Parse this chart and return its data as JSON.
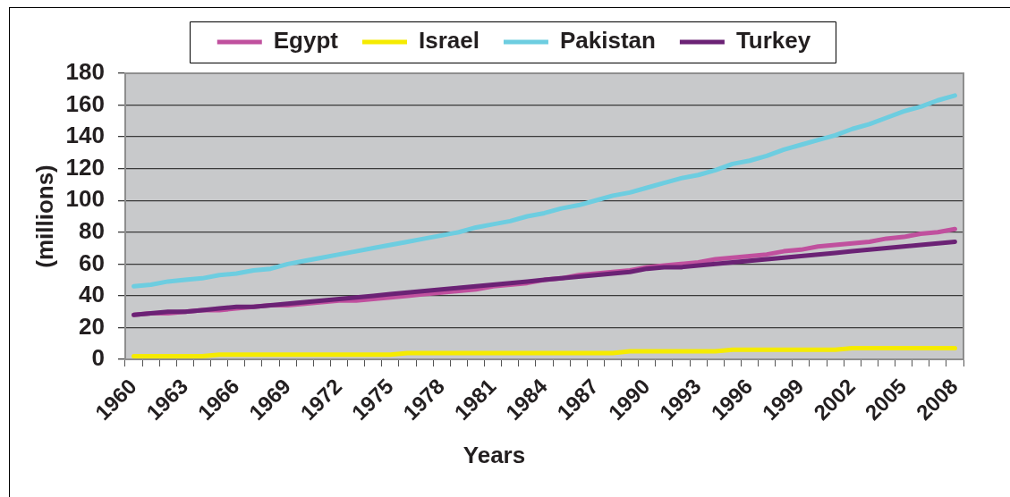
{
  "chart_data": {
    "type": "line",
    "xlabel": "Years",
    "ylabel": "(millions)",
    "categories": [
      "1960",
      null,
      null,
      "1963",
      null,
      null,
      "1966",
      null,
      null,
      "1969",
      null,
      null,
      "1972",
      null,
      null,
      "1975",
      null,
      null,
      "1978",
      null,
      null,
      "1981",
      null,
      null,
      "1984",
      null,
      null,
      "1987",
      null,
      null,
      "1990",
      null,
      null,
      "1993",
      null,
      null,
      "1996",
      null,
      null,
      "1999",
      null,
      null,
      "2002",
      null,
      null,
      "2005",
      null,
      null,
      "2008"
    ],
    "series": [
      {
        "name": "Egypt",
        "color": "#c0509e",
        "values": [
          28,
          29,
          29,
          30,
          31,
          31,
          32,
          33,
          34,
          34,
          35,
          36,
          37,
          37,
          38,
          39,
          40,
          41,
          42,
          43,
          44,
          46,
          47,
          48,
          50,
          51,
          53,
          54,
          55,
          56,
          58,
          59,
          60,
          61,
          63,
          64,
          65,
          66,
          68,
          69,
          71,
          72,
          73,
          74,
          76,
          77,
          79,
          80,
          82
        ]
      },
      {
        "name": "Israel",
        "color": "#f5eb00",
        "values": [
          2,
          2,
          2,
          2,
          2,
          3,
          3,
          3,
          3,
          3,
          3,
          3,
          3,
          3,
          3,
          3,
          4,
          4,
          4,
          4,
          4,
          4,
          4,
          4,
          4,
          4,
          4,
          4,
          4,
          5,
          5,
          5,
          5,
          5,
          5,
          6,
          6,
          6,
          6,
          6,
          6,
          6,
          7,
          7,
          7,
          7,
          7,
          7,
          7
        ]
      },
      {
        "name": "Pakistan",
        "color": "#6dcde0",
        "values": [
          46,
          47,
          49,
          50,
          51,
          53,
          54,
          56,
          57,
          60,
          62,
          64,
          66,
          68,
          70,
          72,
          74,
          76,
          78,
          80,
          83,
          85,
          87,
          90,
          92,
          95,
          97,
          100,
          103,
          105,
          108,
          111,
          114,
          116,
          119,
          123,
          125,
          128,
          132,
          135,
          138,
          141,
          145,
          148,
          152,
          156,
          159,
          163,
          166
        ]
      },
      {
        "name": "Turkey",
        "color": "#6b2275",
        "values": [
          28,
          29,
          30,
          30,
          31,
          32,
          33,
          33,
          34,
          35,
          36,
          37,
          38,
          39,
          40,
          41,
          42,
          43,
          44,
          45,
          46,
          47,
          48,
          49,
          50,
          51,
          52,
          53,
          54,
          55,
          57,
          58,
          58,
          59,
          60,
          61,
          62,
          63,
          64,
          65,
          66,
          67,
          68,
          69,
          70,
          71,
          72,
          73,
          74
        ]
      }
    ],
    "ylim": [
      0,
      180
    ],
    "yticks": [
      0,
      20,
      40,
      60,
      80,
      100,
      120,
      140,
      160,
      180
    ],
    "grid": "y",
    "legend": "top"
  }
}
